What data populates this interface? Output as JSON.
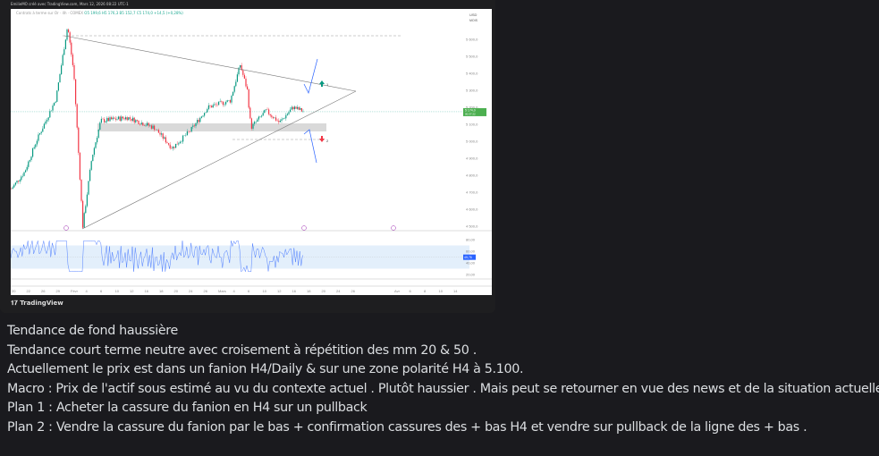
{
  "embed": {
    "credit": "EmilieMO créé avec TradingView.com, Mars 12, 2026 08:22 UTC-1",
    "legend_title": "Contrats à terme sur Or · 4h · COMEX",
    "legend_values": "O5 199,6 H5 176,3 B5 152,7 C5 174,0 +14,5 (+0,28%)",
    "brand": "TradingView",
    "currency": "USD",
    "currency_sub": "MOIS"
  },
  "chart": {
    "price_ticks": [
      "5 600,0",
      "5 500,0",
      "5 400,0",
      "5 300,0",
      "5 200,0",
      "5 100,0",
      "5 000,0",
      "4 900,0",
      "4 800,0",
      "4 700,0",
      "4 600,0",
      "4 500,0"
    ],
    "price_tick_values": [
      5600,
      5500,
      5400,
      5300,
      5200,
      5100,
      5000,
      4900,
      4800,
      4700,
      4600,
      4500
    ],
    "last_price": "5 174,0",
    "last_price_timer": "00:37:22",
    "rsi_ticks": [
      "80,00",
      "60,00",
      "40,00",
      "20,00"
    ],
    "rsi_value": "49,76",
    "x_ticks": [
      "20",
      "22",
      "26",
      "29",
      "Févr",
      "4",
      "6",
      "10",
      "12",
      "16",
      "18",
      "20",
      "24",
      "26",
      "Mars",
      "4",
      "6",
      "10",
      "12",
      "16",
      "18",
      "20",
      "24",
      "26",
      "Avr",
      "6",
      "8",
      "10",
      "14"
    ],
    "annotation_up": "1",
    "annotation_down": "2",
    "colors": {
      "up": "#089981",
      "down": "#f23645",
      "line": "#2962ff",
      "rsi": "#7e57c2",
      "zone": "#d9d9d9"
    },
    "price_keypoints": [
      [
        0,
        4720
      ],
      [
        15,
        4820
      ],
      [
        28,
        5000
      ],
      [
        50,
        5250
      ],
      [
        63,
        5680
      ],
      [
        70,
        5400
      ],
      [
        80,
        4500
      ],
      [
        90,
        4900
      ],
      [
        100,
        5120
      ],
      [
        130,
        5140
      ],
      [
        160,
        5080
      ],
      [
        180,
        4960
      ],
      [
        200,
        5060
      ],
      [
        220,
        5200
      ],
      [
        245,
        5240
      ],
      [
        256,
        5450
      ],
      [
        264,
        5300
      ],
      [
        268,
        5080
      ],
      [
        285,
        5180
      ],
      [
        300,
        5110
      ],
      [
        315,
        5200
      ],
      [
        328,
        5174
      ]
    ]
  },
  "message": {
    "lines": [
      "Tendance de fond haussière",
      "Tendance court terme neutre avec croisement à répétition des mm 20 & 50 .",
      "Actuellement le prix est dans un fanion H4/Daily & sur une zone polarité H4 à 5.100.",
      "Macro : Prix de l'actif sous estimé au vu du contexte actuel . Plutôt haussier . Mais peut se retourner en vue des news et de la situation actuelle.",
      "Plan  1 : Acheter la cassure du fanion en H4 sur un pullback",
      "Plan 2 : Vendre la cassure du fanion par le bas + confirmation cassures des + bas H4 et vendre sur pullback de la ligne des + bas ."
    ]
  }
}
